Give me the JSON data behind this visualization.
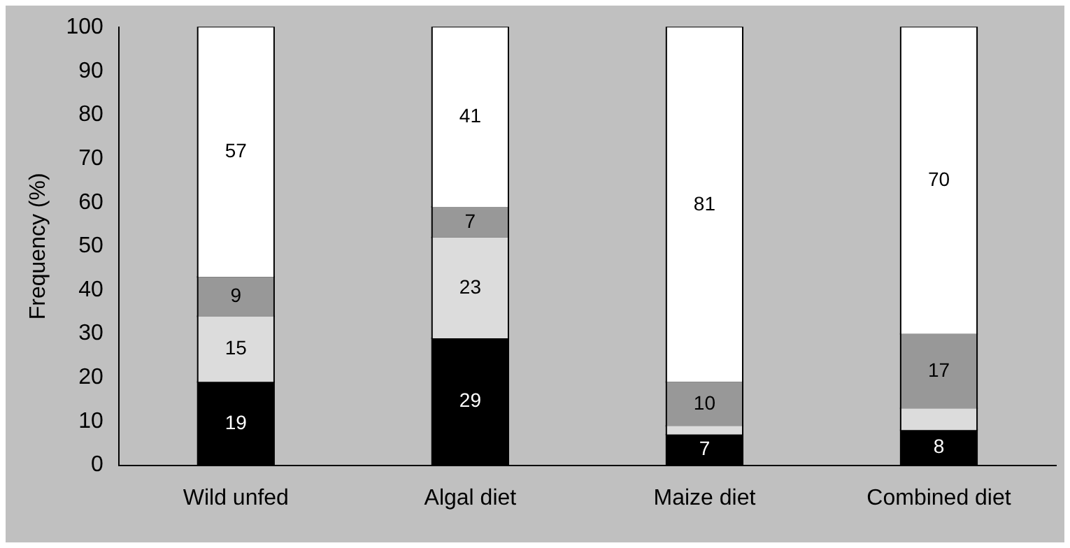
{
  "chart_data": {
    "type": "bar",
    "stacked": true,
    "ylabel": "Frequency (%)",
    "categories": [
      "Wild unfed",
      "Algal diet",
      "Maize diet",
      "Combined diet"
    ],
    "series": [
      {
        "color": "#000000",
        "values": [
          19,
          29,
          7,
          8
        ],
        "value_labels": [
          "19",
          "29",
          "7",
          "8"
        ]
      },
      {
        "color": "#dcdcdc",
        "values": [
          15,
          23,
          2,
          5
        ],
        "value_labels": [
          "15",
          "23",
          null,
          null
        ]
      },
      {
        "color": "#989898",
        "values": [
          9,
          7,
          10,
          17
        ],
        "value_labels": [
          "9",
          "7",
          "10",
          "17"
        ]
      },
      {
        "color": "#ffffff",
        "values": [
          57,
          41,
          81,
          70
        ],
        "value_labels": [
          "57",
          "41",
          "81",
          "70"
        ]
      }
    ],
    "ylim": [
      0,
      100
    ],
    "yticks": [
      0,
      10,
      20,
      30,
      40,
      50,
      60,
      70,
      80,
      90,
      100
    ],
    "grid": false,
    "legend": false
  }
}
